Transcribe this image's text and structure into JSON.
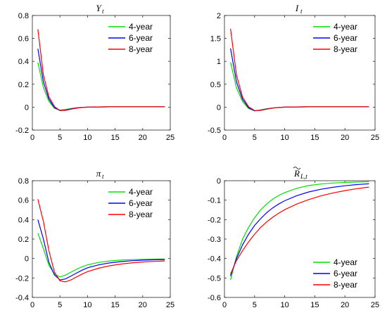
{
  "colors": {
    "4-year": "#00e000",
    "6-year": "#0000ff",
    "8-year": "#ff0000",
    "axis": "#262626"
  },
  "chart_data": [
    {
      "type": "line",
      "id": "Y",
      "title": "Y",
      "title_sub": "t",
      "title_tilde": false,
      "xlim": [
        0,
        25
      ],
      "ylim": [
        -0.2,
        0.8
      ],
      "xticks": [
        0,
        5,
        10,
        15,
        20,
        25
      ],
      "yticks": [
        -0.2,
        0,
        0.2,
        0.4,
        0.6,
        0.8
      ],
      "ytick_labels": [
        "-0.2",
        "0",
        "0.2",
        "0.4",
        "0.6",
        "0.8"
      ],
      "legend_position": "top-right",
      "x": [
        1,
        2,
        3,
        4,
        5,
        6,
        7,
        8,
        9,
        10,
        12,
        14,
        16,
        18,
        20,
        22,
        24
      ],
      "series": [
        {
          "name": "4-year",
          "values": [
            0.39,
            0.17,
            0.05,
            -0.01,
            -0.025,
            -0.02,
            -0.012,
            -0.006,
            -0.002,
            0.0,
            0.002,
            0.003,
            0.003,
            0.003,
            0.003,
            0.003,
            0.003
          ]
        },
        {
          "name": "6-year",
          "values": [
            0.51,
            0.22,
            0.07,
            -0.005,
            -0.03,
            -0.025,
            -0.015,
            -0.007,
            -0.002,
            0.0,
            0.002,
            0.003,
            0.003,
            0.003,
            0.003,
            0.003,
            0.003
          ]
        },
        {
          "name": "8-year",
          "values": [
            0.68,
            0.28,
            0.09,
            0.005,
            -0.03,
            -0.028,
            -0.018,
            -0.009,
            -0.003,
            0.0,
            0.002,
            0.003,
            0.003,
            0.003,
            0.003,
            0.003,
            0.003
          ]
        }
      ]
    },
    {
      "type": "line",
      "id": "I",
      "title": "I",
      "title_sub": "t",
      "title_tilde": false,
      "xlim": [
        0,
        25
      ],
      "ylim": [
        -0.5,
        2
      ],
      "xticks": [
        0,
        5,
        10,
        15,
        20,
        25
      ],
      "yticks": [
        -0.5,
        0,
        0.5,
        1,
        1.5,
        2
      ],
      "ytick_labels": [
        "-0.5",
        "0",
        "0.5",
        "1",
        "1.5",
        "2"
      ],
      "legend_position": "top-right",
      "x": [
        1,
        2,
        3,
        4,
        5,
        6,
        7,
        8,
        9,
        10,
        12,
        14,
        16,
        18,
        20,
        22,
        24
      ],
      "series": [
        {
          "name": "4-year",
          "values": [
            0.98,
            0.42,
            0.12,
            -0.03,
            -0.08,
            -0.06,
            -0.035,
            -0.017,
            -0.006,
            0.0,
            0.005,
            0.008,
            0.008,
            0.008,
            0.008,
            0.008,
            0.008
          ]
        },
        {
          "name": "6-year",
          "values": [
            1.28,
            0.55,
            0.17,
            -0.01,
            -0.08,
            -0.065,
            -0.04,
            -0.02,
            -0.007,
            0.0,
            0.005,
            0.008,
            0.008,
            0.008,
            0.008,
            0.008,
            0.008
          ]
        },
        {
          "name": "8-year",
          "values": [
            1.71,
            0.7,
            0.22,
            0.01,
            -0.075,
            -0.07,
            -0.045,
            -0.022,
            -0.008,
            0.0,
            0.005,
            0.008,
            0.008,
            0.008,
            0.008,
            0.008,
            0.008
          ]
        }
      ]
    },
    {
      "type": "line",
      "id": "pi",
      "title": "π",
      "title_sub": "t",
      "title_tilde": false,
      "xlim": [
        0,
        25
      ],
      "ylim": [
        -0.4,
        0.8
      ],
      "xticks": [
        0,
        5,
        10,
        15,
        20,
        25
      ],
      "yticks": [
        -0.4,
        -0.2,
        0,
        0.2,
        0.4,
        0.6,
        0.8
      ],
      "ytick_labels": [
        "-0.4",
        "-0.2",
        "0",
        "0.2",
        "0.4",
        "0.6",
        "0.8"
      ],
      "legend_position": "top-right",
      "x": [
        1,
        2,
        3,
        4,
        5,
        6,
        7,
        8,
        9,
        10,
        12,
        14,
        16,
        18,
        20,
        22,
        24
      ],
      "series": [
        {
          "name": "4-year",
          "values": [
            0.26,
            0.1,
            -0.07,
            -0.16,
            -0.19,
            -0.17,
            -0.14,
            -0.11,
            -0.085,
            -0.065,
            -0.04,
            -0.025,
            -0.016,
            -0.011,
            -0.008,
            -0.006,
            -0.005
          ]
        },
        {
          "name": "6-year",
          "values": [
            0.4,
            0.2,
            -0.04,
            -0.17,
            -0.22,
            -0.21,
            -0.18,
            -0.15,
            -0.12,
            -0.095,
            -0.065,
            -0.045,
            -0.032,
            -0.023,
            -0.017,
            -0.013,
            -0.01
          ]
        },
        {
          "name": "8-year",
          "values": [
            0.61,
            0.38,
            0.08,
            -0.14,
            -0.23,
            -0.24,
            -0.22,
            -0.19,
            -0.16,
            -0.135,
            -0.1,
            -0.075,
            -0.057,
            -0.045,
            -0.036,
            -0.03,
            -0.025
          ]
        }
      ]
    },
    {
      "type": "line",
      "id": "RL",
      "title": "R",
      "title_sub": "L,t",
      "title_tilde": true,
      "xlim": [
        0,
        25
      ],
      "ylim": [
        -0.6,
        0
      ],
      "xticks": [
        0,
        5,
        10,
        15,
        20,
        25
      ],
      "yticks": [
        -0.6,
        -0.5,
        -0.4,
        -0.3,
        -0.2,
        -0.1,
        0
      ],
      "ytick_labels": [
        "-0.6",
        "-0.5",
        "-0.4",
        "-0.3",
        "-0.2",
        "-0.1",
        "0"
      ],
      "legend_position": "bottom-right",
      "x": [
        1,
        2,
        3,
        4,
        5,
        6,
        7,
        8,
        9,
        10,
        12,
        14,
        16,
        18,
        20,
        22,
        24
      ],
      "series": [
        {
          "name": "4-year",
          "values": [
            -0.51,
            -0.39,
            -0.3,
            -0.24,
            -0.19,
            -0.15,
            -0.12,
            -0.095,
            -0.076,
            -0.061,
            -0.039,
            -0.025,
            -0.017,
            -0.012,
            -0.009,
            -0.007,
            -0.005
          ]
        },
        {
          "name": "6-year",
          "values": [
            -0.49,
            -0.4,
            -0.33,
            -0.275,
            -0.23,
            -0.195,
            -0.165,
            -0.14,
            -0.12,
            -0.103,
            -0.077,
            -0.058,
            -0.044,
            -0.034,
            -0.026,
            -0.02,
            -0.016
          ]
        },
        {
          "name": "8-year",
          "values": [
            -0.48,
            -0.41,
            -0.36,
            -0.315,
            -0.275,
            -0.24,
            -0.212,
            -0.188,
            -0.167,
            -0.149,
            -0.12,
            -0.097,
            -0.078,
            -0.063,
            -0.051,
            -0.041,
            -0.033
          ]
        }
      ]
    }
  ]
}
